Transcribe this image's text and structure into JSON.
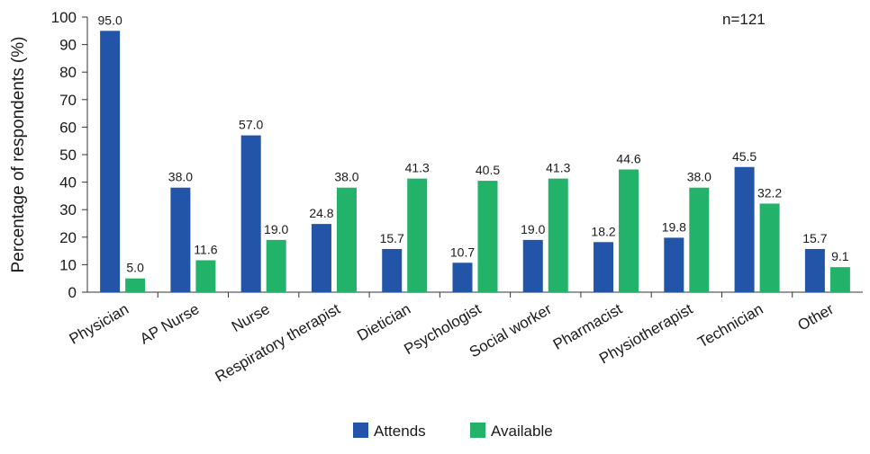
{
  "chart_data": {
    "type": "bar",
    "title": "",
    "xlabel": "",
    "ylabel": "Percentage of respondents (%)",
    "annotation": "n=121",
    "ylim": [
      0,
      100
    ],
    "y_ticks": [
      "0",
      "10",
      "20",
      "30",
      "40",
      "50",
      "60",
      "70",
      "80",
      "90",
      "100"
    ],
    "categories": [
      "Physician",
      "AP Nurse",
      "Nurse",
      "Respiratory therapist",
      "Dietician",
      "Psychologist",
      "Social worker",
      "Pharmacist",
      "Physiotherapist",
      "Technician",
      "Other"
    ],
    "series": [
      {
        "name": "Attends",
        "color": "#2254a8",
        "values": [
          95.0,
          38.0,
          57.0,
          24.8,
          15.7,
          10.7,
          19.0,
          18.2,
          19.8,
          45.5,
          15.7
        ],
        "labels": [
          "95.0",
          "38.0",
          "57.0",
          "24.8",
          "15.7",
          "10.7",
          "19.0",
          "18.2",
          "19.8",
          "45.5",
          "15.7"
        ]
      },
      {
        "name": "Available",
        "color": "#23b26a",
        "values": [
          5.0,
          11.6,
          19.0,
          38.0,
          41.3,
          40.5,
          41.3,
          44.6,
          38.0,
          32.2,
          9.1
        ],
        "labels": [
          "5.0",
          "11.6",
          "19.0",
          "38.0",
          "41.3",
          "40.5",
          "41.3",
          "44.6",
          "38.0",
          "32.2",
          "9.1"
        ]
      }
    ],
    "grid": false,
    "legend": "bottom-center"
  }
}
